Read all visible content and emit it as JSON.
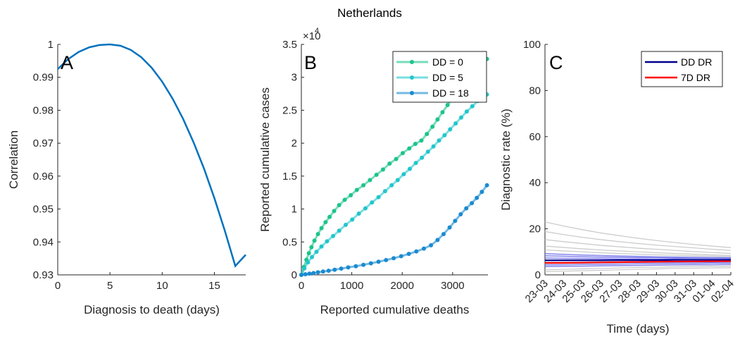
{
  "title": "Netherlands",
  "chart_data": [
    {
      "type": "line",
      "panel_label": "A",
      "xlabel": "Diagnosis to death (days)",
      "ylabel": "Correlation",
      "xlim": [
        0,
        18
      ],
      "ylim": [
        0.93,
        1.0
      ],
      "xticks": [
        "0",
        "5",
        "10",
        "15"
      ],
      "yticks": [
        "0.93",
        "0.94",
        "0.95",
        "0.96",
        "0.97",
        "0.98",
        "0.99",
        "1"
      ],
      "grid": false,
      "colors": {
        "line": "#0072bd"
      },
      "series": [
        {
          "x": [
            0,
            1,
            2,
            3,
            4,
            5,
            6,
            7,
            8,
            9,
            10,
            11,
            12,
            13,
            14,
            15,
            16,
            17,
            18
          ],
          "values": [
            0.9925,
            0.9955,
            0.9977,
            0.9991,
            0.9998,
            1.0,
            0.9996,
            0.9983,
            0.9961,
            0.9929,
            0.9887,
            0.9835,
            0.9774,
            0.9703,
            0.9623,
            0.9533,
            0.9434,
            0.9327,
            0.9361
          ]
        }
      ]
    },
    {
      "type": "line",
      "panel_label": "B",
      "xlabel": "Reported cumulative deaths",
      "ylabel": "Reported cumulative cases",
      "xlim": [
        0,
        3700
      ],
      "ylim": [
        0,
        35000
      ],
      "y_multiplier": "×10",
      "y_multiplier_exp": "4",
      "xticks": [
        "0",
        "1000",
        "2000",
        "3000"
      ],
      "yticks": [
        "0",
        "0.5",
        "1",
        "1.5",
        "2",
        "2.5",
        "3",
        "3.5"
      ],
      "grid": false,
      "legend_position": "top-right",
      "series": [
        {
          "name": "DD = 0",
          "color": "#1cc48a",
          "x": [
            0,
            50,
            100,
            150,
            200,
            260,
            330,
            400,
            480,
            560,
            650,
            750,
            860,
            980,
            1100,
            1230,
            1360,
            1490,
            1620,
            1750,
            1880,
            2010,
            2140,
            2260,
            2380,
            2490,
            2600,
            2700,
            2800,
            2900,
            3000,
            3100,
            3200,
            3300,
            3400,
            3500,
            3600,
            3680
          ],
          "values": [
            0,
            1200,
            2300,
            3300,
            4200,
            5200,
            6200,
            7100,
            8000,
            8800,
            9700,
            10600,
            11400,
            12100,
            12900,
            13600,
            14400,
            15200,
            16000,
            16900,
            17600,
            18500,
            19200,
            19900,
            20400,
            21400,
            22500,
            23600,
            24700,
            25800,
            26800,
            27700,
            28600,
            29400,
            30100,
            30900,
            31700,
            32800
          ]
        },
        {
          "name": "DD = 5",
          "color": "#22c6cc",
          "x": [
            0,
            60,
            130,
            210,
            300,
            400,
            510,
            630,
            750,
            880,
            1010,
            1140,
            1270,
            1400,
            1530,
            1660,
            1790,
            1910,
            2030,
            2150,
            2270,
            2390,
            2510,
            2620,
            2730,
            2840,
            2950,
            3060,
            3170,
            3280,
            3390,
            3500,
            3600,
            3680
          ],
          "values": [
            0,
            1000,
            1900,
            2700,
            3500,
            4300,
            5100,
            5900,
            6700,
            7600,
            8400,
            9300,
            10100,
            11000,
            11800,
            12700,
            13600,
            14400,
            15300,
            16100,
            17000,
            17800,
            18700,
            19500,
            20400,
            21200,
            22100,
            23000,
            23900,
            24800,
            25600,
            26400,
            27200,
            27400
          ]
        },
        {
          "name": "DD = 18",
          "color": "#1a8bd1",
          "x": [
            0,
            80,
            160,
            240,
            330,
            430,
            540,
            660,
            790,
            930,
            1080,
            1230,
            1380,
            1530,
            1680,
            1830,
            1980,
            2130,
            2280,
            2430,
            2570,
            2700,
            2820,
            2940,
            3050,
            3160,
            3270,
            3380,
            3480,
            3580,
            3680
          ],
          "values": [
            0,
            100,
            180,
            270,
            380,
            500,
            630,
            780,
            950,
            1130,
            1320,
            1530,
            1750,
            1990,
            2250,
            2530,
            2840,
            3180,
            3550,
            3980,
            4500,
            5300,
            6200,
            7200,
            8200,
            9200,
            10100,
            10900,
            11700,
            12600,
            13600
          ]
        }
      ]
    },
    {
      "type": "line",
      "panel_label": "C",
      "xlabel": "Time (days)",
      "ylabel": "Diagnostic rate (%)",
      "ylim": [
        0,
        100
      ],
      "categories": [
        "23-03",
        "24-03",
        "25-03",
        "26-03",
        "27-03",
        "28-03",
        "29-03",
        "30-03",
        "31-03",
        "01-04",
        "02-04"
      ],
      "yticks": [
        "0",
        "20",
        "40",
        "60",
        "80",
        "100"
      ],
      "grid": false,
      "legend_position": "top-right",
      "series": [
        {
          "name": "DD DR",
          "color": "#00008b",
          "values": [
            6.3,
            6.3,
            6.3,
            6.3,
            6.4,
            6.4,
            6.4,
            6.5,
            6.5,
            6.5,
            6.5
          ]
        },
        {
          "name": "7D DR",
          "color": "#ff0000",
          "values": [
            5.2,
            5.2,
            5.3,
            5.4,
            5.5,
            5.6,
            5.7,
            5.8,
            5.8,
            5.9,
            5.9
          ]
        }
      ],
      "band_series": [
        {
          "color": "#6666e8",
          "values": [
            9.2,
            8.9,
            8.6,
            8.4,
            8.2,
            8.0,
            7.8,
            7.7,
            7.6,
            7.5,
            7.5
          ]
        },
        {
          "color": "#6666e8",
          "values": [
            8.3,
            8.1,
            7.9,
            7.7,
            7.6,
            7.5,
            7.4,
            7.3,
            7.2,
            7.2,
            7.1
          ]
        },
        {
          "color": "#6666e8",
          "values": [
            7.3,
            7.2,
            7.1,
            7.0,
            6.9,
            6.9,
            6.8,
            6.8,
            6.7,
            6.7,
            6.7
          ]
        },
        {
          "color": "#6666e8",
          "values": [
            5.0,
            5.1,
            5.2,
            5.3,
            5.4,
            5.4,
            5.5,
            5.5,
            5.6,
            5.6,
            5.7
          ]
        },
        {
          "color": "#6666e8",
          "values": [
            4.3,
            4.4,
            4.5,
            4.6,
            4.7,
            4.8,
            4.9,
            5.0,
            5.0,
            5.1,
            5.1
          ]
        },
        {
          "color": "#6666e8",
          "values": [
            3.6,
            3.7,
            3.8,
            3.9,
            4.0,
            4.1,
            4.2,
            4.3,
            4.4,
            4.4,
            4.5
          ]
        }
      ],
      "gray_series": [
        {
          "values": [
            23.0,
            21.2,
            19.6,
            18.2,
            17.0,
            15.9,
            14.9,
            14.0,
            13.2,
            12.5,
            11.8
          ]
        },
        {
          "values": [
            18.8,
            17.5,
            16.3,
            15.3,
            14.4,
            13.6,
            12.9,
            12.3,
            11.7,
            11.1,
            10.6
          ]
        },
        {
          "values": [
            15.3,
            14.4,
            13.6,
            12.8,
            12.2,
            11.6,
            11.1,
            10.6,
            10.1,
            9.7,
            9.3
          ]
        },
        {
          "values": [
            12.5,
            11.9,
            11.3,
            10.8,
            10.4,
            10.0,
            9.6,
            9.3,
            9.0,
            8.7,
            8.4
          ]
        },
        {
          "values": [
            10.8,
            10.4,
            10.0,
            9.6,
            9.3,
            9.0,
            8.7,
            8.5,
            8.3,
            8.1,
            7.9
          ]
        },
        {
          "values": [
            2.2,
            2.4,
            2.6,
            2.8,
            3.0,
            3.2,
            3.3,
            3.5,
            3.6,
            3.7,
            3.8
          ]
        },
        {
          "values": [
            1.4,
            1.6,
            1.8,
            2.0,
            2.2,
            2.4,
            2.6,
            2.8,
            2.9,
            3.0,
            3.1
          ]
        }
      ]
    }
  ]
}
